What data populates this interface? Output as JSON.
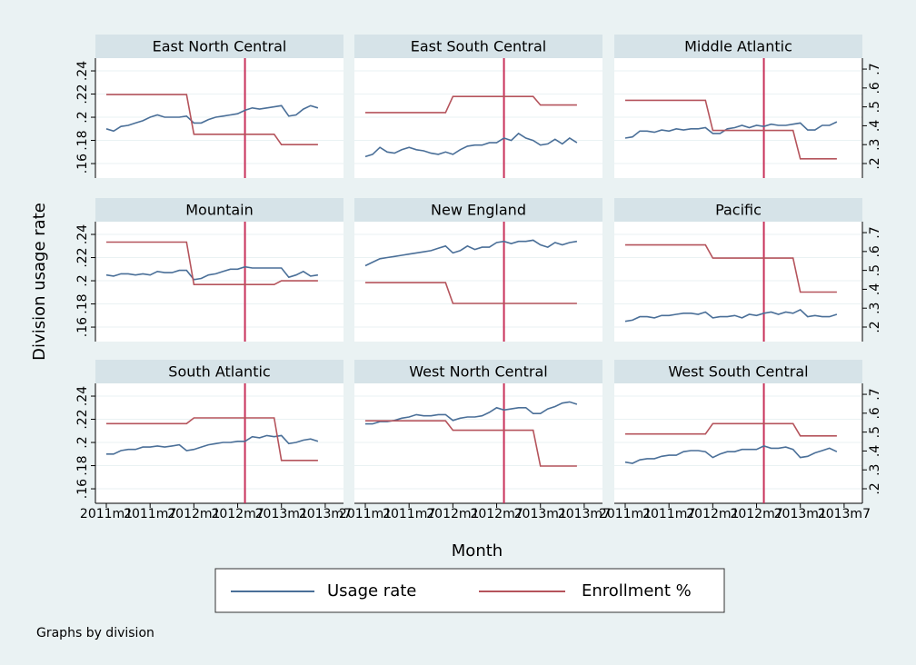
{
  "chart_data": {
    "type": "line",
    "x_label": "Month",
    "y_label": "Division usage rate",
    "note": "Graphs by division",
    "x": [
      "2011m1",
      "2011m2",
      "2011m3",
      "2011m4",
      "2011m5",
      "2011m6",
      "2011m7",
      "2011m8",
      "2011m9",
      "2011m10",
      "2011m11",
      "2011m12",
      "2012m1",
      "2012m2",
      "2012m3",
      "2012m4",
      "2012m5",
      "2012m6",
      "2012m7",
      "2012m8",
      "2012m9",
      "2012m10",
      "2012m11",
      "2012m12",
      "2013m1",
      "2013m2",
      "2013m3",
      "2013m4",
      "2013m5",
      "2013m6"
    ],
    "xticks": [
      "2011m1",
      "2011m7",
      "2012m1",
      "2012m7",
      "2013m1",
      "2013m7"
    ],
    "reference_x": "2012m8",
    "reference_color": "#c8315a",
    "ylim": [
      0.1475,
      0.251
    ],
    "yticks": [
      {
        "value": 0.16,
        "label": ".16"
      },
      {
        "value": 0.18,
        "label": ".18"
      },
      {
        "value": 0.2,
        "label": ".2"
      },
      {
        "value": 0.22,
        "label": ".22"
      },
      {
        "value": 0.24,
        "label": ".24"
      }
    ],
    "y2lim": [
      0.123,
      0.758
    ],
    "y2ticks": [
      {
        "value": 0.2,
        "label": ".2"
      },
      {
        "value": 0.3,
        "label": ".3"
      },
      {
        "value": 0.4,
        "label": ".4"
      },
      {
        "value": 0.5,
        "label": ".5"
      },
      {
        "value": 0.6,
        "label": ".6"
      },
      {
        "value": 0.7,
        "label": ".7"
      }
    ],
    "grid": true,
    "legend": [
      {
        "name": "Usage rate",
        "color": "#4a6f98"
      },
      {
        "name": "Enrollment %",
        "color": "#b5545c",
        "axis": "y2"
      }
    ],
    "panels": [
      {
        "title": "East North Central",
        "series": [
          {
            "values": [
              0.19,
              0.188,
              0.192,
              0.193,
              0.195,
              0.197,
              0.2,
              0.202,
              0.2,
              0.2,
              0.2,
              0.201,
              0.195,
              0.195,
              0.198,
              0.2,
              0.201,
              0.202,
              0.203,
              0.206,
              0.208,
              0.207,
              0.208,
              0.209,
              0.21,
              0.201,
              0.202,
              0.207,
              0.21,
              0.208
            ]
          },
          {
            "values": [
              0.565,
              0.565,
              0.565,
              0.565,
              0.565,
              0.565,
              0.565,
              0.565,
              0.565,
              0.565,
              0.565,
              0.565,
              0.355,
              0.355,
              0.355,
              0.355,
              0.355,
              0.355,
              0.355,
              0.355,
              0.355,
              0.355,
              0.355,
              0.355,
              0.3,
              0.3,
              0.3,
              0.3,
              0.3,
              0.3
            ]
          }
        ]
      },
      {
        "title": "East South Central",
        "series": [
          {
            "values": [
              0.166,
              0.168,
              0.174,
              0.17,
              0.169,
              0.172,
              0.174,
              0.172,
              0.171,
              0.169,
              0.168,
              0.17,
              0.168,
              0.172,
              0.175,
              0.176,
              0.176,
              0.178,
              0.178,
              0.182,
              0.18,
              0.186,
              0.182,
              0.18,
              0.176,
              0.177,
              0.181,
              0.177,
              0.182,
              0.178
            ]
          },
          {
            "values": [
              0.47,
              0.47,
              0.47,
              0.47,
              0.47,
              0.47,
              0.47,
              0.47,
              0.47,
              0.47,
              0.47,
              0.47,
              0.555,
              0.555,
              0.555,
              0.555,
              0.555,
              0.555,
              0.555,
              0.555,
              0.555,
              0.555,
              0.555,
              0.555,
              0.51,
              0.51,
              0.51,
              0.51,
              0.51,
              0.51
            ]
          }
        ]
      },
      {
        "title": "Middle Atlantic",
        "series": [
          {
            "values": [
              0.182,
              0.183,
              0.188,
              0.188,
              0.187,
              0.189,
              0.188,
              0.19,
              0.189,
              0.19,
              0.19,
              0.191,
              0.186,
              0.186,
              0.19,
              0.191,
              0.193,
              0.191,
              0.193,
              0.192,
              0.194,
              0.193,
              0.193,
              0.194,
              0.195,
              0.189,
              0.189,
              0.193,
              0.193,
              0.196
            ]
          },
          {
            "values": [
              0.535,
              0.535,
              0.535,
              0.535,
              0.535,
              0.535,
              0.535,
              0.535,
              0.535,
              0.535,
              0.535,
              0.535,
              0.375,
              0.375,
              0.375,
              0.375,
              0.375,
              0.375,
              0.375,
              0.375,
              0.375,
              0.375,
              0.375,
              0.375,
              0.225,
              0.225,
              0.225,
              0.225,
              0.225,
              0.225
            ]
          }
        ]
      },
      {
        "title": "Mountain",
        "series": [
          {
            "values": [
              0.205,
              0.204,
              0.206,
              0.206,
              0.205,
              0.206,
              0.205,
              0.208,
              0.207,
              0.207,
              0.209,
              0.209,
              0.201,
              0.202,
              0.205,
              0.206,
              0.208,
              0.21,
              0.21,
              0.212,
              0.211,
              0.211,
              0.211,
              0.211,
              0.211,
              0.203,
              0.205,
              0.208,
              0.204,
              0.205
            ]
          },
          {
            "values": [
              0.65,
              0.65,
              0.65,
              0.65,
              0.65,
              0.65,
              0.65,
              0.65,
              0.65,
              0.65,
              0.65,
              0.65,
              0.425,
              0.425,
              0.425,
              0.425,
              0.425,
              0.425,
              0.425,
              0.425,
              0.425,
              0.425,
              0.425,
              0.425,
              0.445,
              0.445,
              0.445,
              0.445,
              0.445,
              0.445
            ]
          }
        ]
      },
      {
        "title": "New England",
        "series": [
          {
            "values": [
              0.213,
              0.216,
              0.219,
              0.22,
              0.221,
              0.222,
              0.223,
              0.224,
              0.225,
              0.226,
              0.228,
              0.23,
              0.224,
              0.226,
              0.23,
              0.227,
              0.229,
              0.229,
              0.233,
              0.234,
              0.232,
              0.234,
              0.234,
              0.235,
              0.231,
              0.229,
              0.233,
              0.231,
              0.233,
              0.234
            ]
          },
          {
            "values": [
              0.435,
              0.435,
              0.435,
              0.435,
              0.435,
              0.435,
              0.435,
              0.435,
              0.435,
              0.435,
              0.435,
              0.435,
              0.325,
              0.325,
              0.325,
              0.325,
              0.325,
              0.325,
              0.325,
              0.325,
              0.325,
              0.325,
              0.325,
              0.325,
              0.325,
              0.325,
              0.325,
              0.325,
              0.325,
              0.325
            ]
          }
        ]
      },
      {
        "title": "Pacific",
        "series": [
          {
            "values": [
              0.165,
              0.166,
              0.169,
              0.169,
              0.168,
              0.17,
              0.17,
              0.171,
              0.172,
              0.172,
              0.171,
              0.173,
              0.168,
              0.169,
              0.169,
              0.17,
              0.168,
              0.171,
              0.17,
              0.172,
              0.173,
              0.171,
              0.173,
              0.172,
              0.175,
              0.169,
              0.17,
              0.169,
              0.169,
              0.171
            ]
          },
          {
            "values": [
              0.635,
              0.635,
              0.635,
              0.635,
              0.635,
              0.635,
              0.635,
              0.635,
              0.635,
              0.635,
              0.635,
              0.635,
              0.565,
              0.565,
              0.565,
              0.565,
              0.565,
              0.565,
              0.565,
              0.565,
              0.565,
              0.565,
              0.565,
              0.565,
              0.385,
              0.385,
              0.385,
              0.385,
              0.385,
              0.385
            ]
          }
        ]
      },
      {
        "title": "South Atlantic",
        "series": [
          {
            "values": [
              0.19,
              0.19,
              0.193,
              0.194,
              0.194,
              0.196,
              0.196,
              0.197,
              0.196,
              0.197,
              0.198,
              0.193,
              0.194,
              0.196,
              0.198,
              0.199,
              0.2,
              0.2,
              0.201,
              0.201,
              0.205,
              0.204,
              0.206,
              0.205,
              0.206,
              0.199,
              0.2,
              0.202,
              0.203,
              0.201
            ]
          },
          {
            "values": [
              0.545,
              0.545,
              0.545,
              0.545,
              0.545,
              0.545,
              0.545,
              0.545,
              0.545,
              0.545,
              0.545,
              0.545,
              0.575,
              0.575,
              0.575,
              0.575,
              0.575,
              0.575,
              0.575,
              0.575,
              0.575,
              0.575,
              0.575,
              0.575,
              0.35,
              0.35,
              0.35,
              0.35,
              0.35,
              0.35
            ]
          }
        ]
      },
      {
        "title": "West North Central",
        "series": [
          {
            "values": [
              0.216,
              0.216,
              0.218,
              0.218,
              0.219,
              0.221,
              0.222,
              0.224,
              0.223,
              0.223,
              0.224,
              0.224,
              0.219,
              0.221,
              0.222,
              0.222,
              0.223,
              0.226,
              0.23,
              0.228,
              0.229,
              0.23,
              0.23,
              0.225,
              0.225,
              0.229,
              0.231,
              0.234,
              0.235,
              0.233
            ]
          },
          {
            "values": [
              0.56,
              0.56,
              0.56,
              0.56,
              0.56,
              0.56,
              0.56,
              0.56,
              0.56,
              0.56,
              0.56,
              0.56,
              0.51,
              0.51,
              0.51,
              0.51,
              0.51,
              0.51,
              0.51,
              0.51,
              0.51,
              0.51,
              0.51,
              0.51,
              0.32,
              0.32,
              0.32,
              0.32,
              0.32,
              0.32
            ]
          }
        ]
      },
      {
        "title": "West South Central",
        "series": [
          {
            "values": [
              0.183,
              0.182,
              0.185,
              0.186,
              0.186,
              0.188,
              0.189,
              0.189,
              0.192,
              0.193,
              0.193,
              0.192,
              0.187,
              0.19,
              0.192,
              0.192,
              0.194,
              0.194,
              0.194,
              0.197,
              0.195,
              0.195,
              0.196,
              0.194,
              0.187,
              0.188,
              0.191,
              0.193,
              0.195,
              0.192
            ]
          },
          {
            "values": [
              0.49,
              0.49,
              0.49,
              0.49,
              0.49,
              0.49,
              0.49,
              0.49,
              0.49,
              0.49,
              0.49,
              0.49,
              0.545,
              0.545,
              0.545,
              0.545,
              0.545,
              0.545,
              0.545,
              0.545,
              0.545,
              0.545,
              0.545,
              0.545,
              0.48,
              0.48,
              0.48,
              0.48,
              0.48,
              0.48
            ]
          }
        ]
      }
    ]
  }
}
